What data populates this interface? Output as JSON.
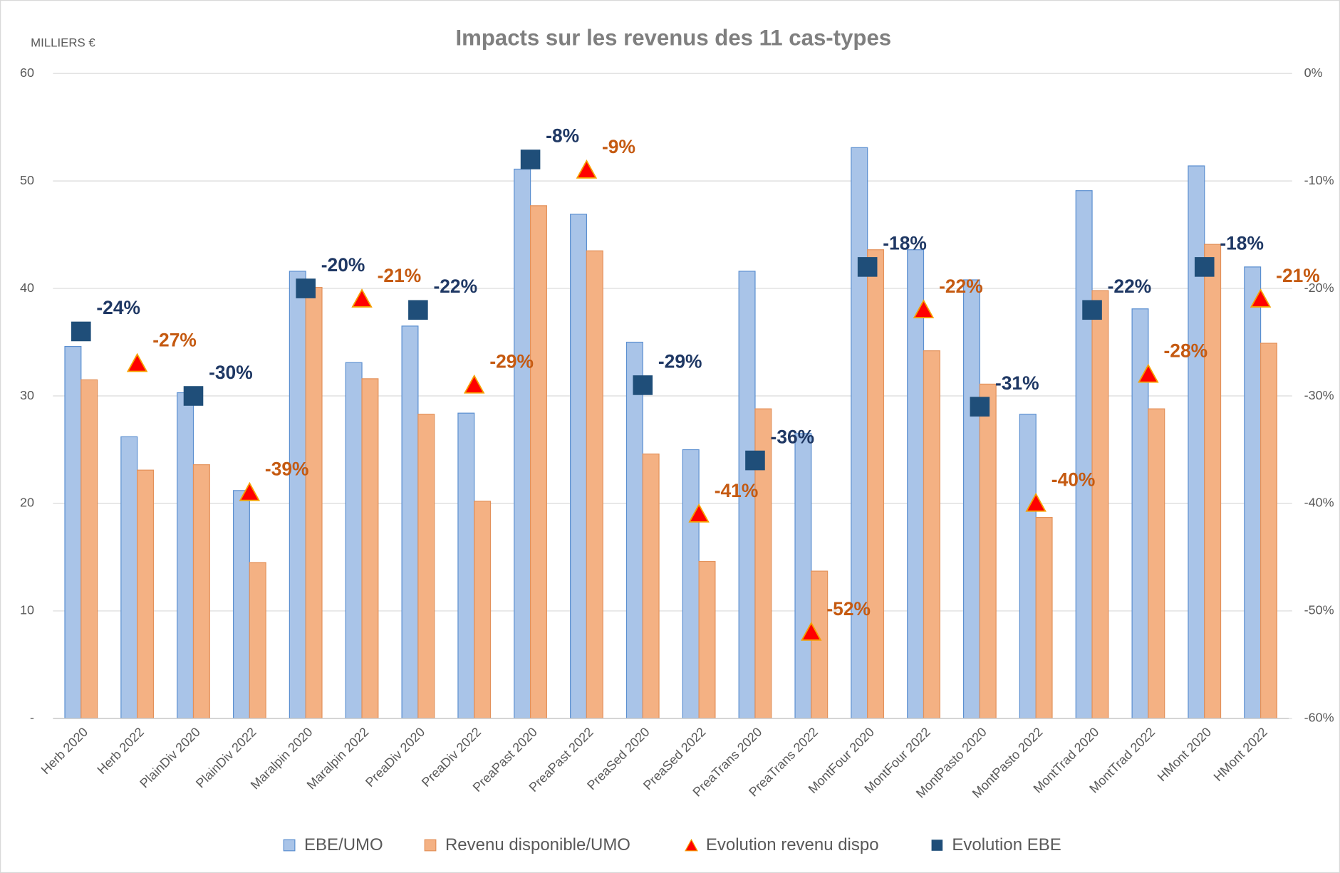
{
  "chart_data": {
    "type": "bar",
    "title": "Impacts sur les revenus des 11 cas-types",
    "y_unit_label": "MILLIERS €",
    "categories": [
      "Herb 2020",
      "Herb 2022",
      "PlainDiv 2020",
      "PlainDiv 2022",
      "Maralpin 2020",
      "Maralpin 2022",
      "PreaDiv 2020",
      "PreaDiv 2022",
      "PreaPast 2020",
      "PreaPast 2022",
      "PreaSed 2020",
      "PreaSed 2022",
      "PreaTrans 2020",
      "PreaTrans 2022",
      "MontFour 2020",
      "MontFour 2022",
      "MontPasto 2020",
      "MontPasto 2022",
      "MontTrad 2020",
      "MontTrad 2022",
      "HMont 2020",
      "HMont 2022"
    ],
    "series": [
      {
        "name": "EBE/UMO",
        "type": "bar",
        "color": "#a9c4e8",
        "stroke": "#5b8fd0",
        "values": [
          34.6,
          26.2,
          30.3,
          21.2,
          41.6,
          33.1,
          36.5,
          28.4,
          51.1,
          46.9,
          35.0,
          25.0,
          41.6,
          26.5,
          53.1,
          43.6,
          40.8,
          28.3,
          49.1,
          38.1,
          51.4,
          42.0
        ]
      },
      {
        "name": "Revenu disponible/UMO",
        "type": "bar",
        "color": "#f4b183",
        "stroke": "#e3915a",
        "values": [
          31.5,
          23.1,
          23.6,
          14.5,
          40.1,
          31.6,
          28.3,
          20.2,
          47.7,
          43.5,
          24.6,
          14.6,
          28.8,
          13.7,
          43.6,
          34.2,
          31.1,
          18.7,
          39.8,
          28.8,
          44.1,
          34.9
        ]
      },
      {
        "name": "Evolution revenu dispo",
        "type": "scatter",
        "marker": "triangle",
        "axis": "y2",
        "color": "#ff0000",
        "stroke": "#f5a000",
        "label_color": "#c55a11",
        "values": [
          null,
          -27,
          null,
          -39,
          null,
          -21,
          null,
          -29,
          null,
          -9,
          null,
          -41,
          null,
          -52,
          null,
          -22,
          null,
          -40,
          null,
          -28,
          null,
          -21
        ],
        "value_labels": [
          null,
          "-27%",
          null,
          "-39%",
          null,
          "-21%",
          null,
          "-29%",
          null,
          "-9%",
          null,
          "-41%",
          null,
          "-52%",
          null,
          "-22%",
          null,
          "-40%",
          null,
          "-28%",
          null,
          "-21%"
        ]
      },
      {
        "name": "Evolution EBE",
        "type": "scatter",
        "marker": "square",
        "axis": "y2",
        "color": "#1f4e79",
        "stroke": "#1f4e79",
        "label_color": "#1f3864",
        "values": [
          -24,
          null,
          -30,
          null,
          -20,
          null,
          -22,
          null,
          -8,
          null,
          -29,
          null,
          -36,
          null,
          -18,
          null,
          -31,
          null,
          -22,
          null,
          -18,
          null
        ],
        "value_labels": [
          "-24%",
          null,
          "-30%",
          null,
          "-20%",
          null,
          "-22%",
          null,
          "-8%",
          null,
          "-29%",
          null,
          "-36%",
          null,
          "-18%",
          null,
          "-31%",
          null,
          "-22%",
          null,
          "-18%",
          null
        ]
      }
    ],
    "ylim": [
      0,
      60
    ],
    "yticks": [
      {
        "value": 0,
        "label": "-"
      },
      10,
      20,
      30,
      40,
      50,
      60
    ],
    "y2lim": [
      -60,
      0
    ],
    "y2ticks": [
      {
        "value": -60,
        "label": "-60%"
      },
      {
        "value": -50,
        "label": "-50%"
      },
      {
        "value": -40,
        "label": "-40%"
      },
      {
        "value": -30,
        "label": "-30%"
      },
      {
        "value": -20,
        "label": "-20%"
      },
      {
        "value": -10,
        "label": "-10%"
      },
      {
        "value": 0,
        "label": "0%"
      }
    ],
    "grid": true,
    "legend": "bottom"
  }
}
